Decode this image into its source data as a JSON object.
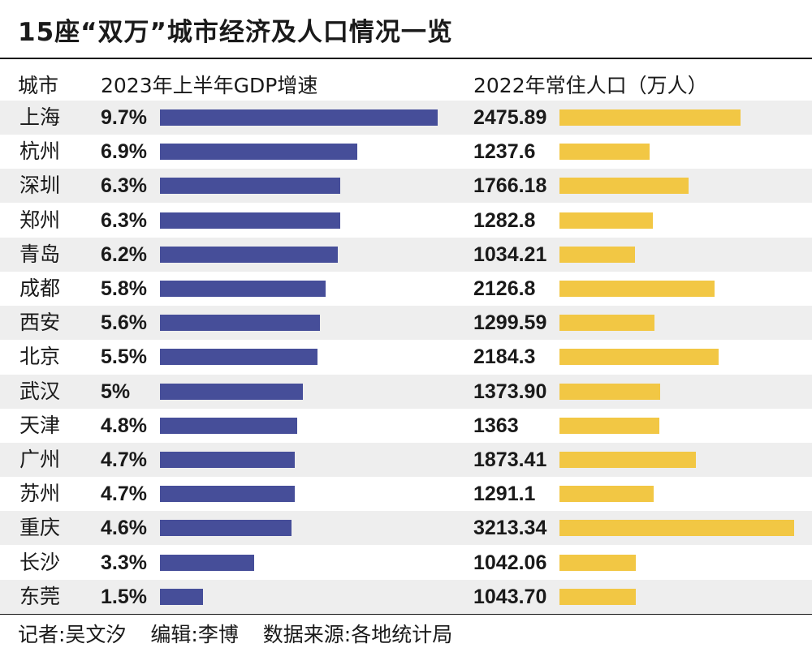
{
  "title": "15座“双万”城市经济及人口情况一览",
  "headers": {
    "city": "城市",
    "gdp": "2023年上半年GDP增速",
    "population": "2022年常住人口（万人）"
  },
  "colors": {
    "gdp_bar": "#464e99",
    "pop_bar": "#f2c744",
    "row_alt": "#eeeeee"
  },
  "chart_data": {
    "type": "bar",
    "categories": [
      "上海",
      "杭州",
      "深圳",
      "郑州",
      "青岛",
      "成都",
      "西安",
      "北京",
      "武汉",
      "天津",
      "广州",
      "苏州",
      "重庆",
      "长沙",
      "东莞"
    ],
    "series": [
      {
        "name": "2023年上半年GDP增速",
        "unit": "%",
        "values": [
          9.7,
          6.9,
          6.3,
          6.3,
          6.2,
          5.8,
          5.6,
          5.5,
          5,
          4.8,
          4.7,
          4.7,
          4.6,
          3.3,
          1.5
        ],
        "labels": [
          "9.7%",
          "6.9%",
          "6.3%",
          "6.3%",
          "6.2%",
          "5.8%",
          "5.6%",
          "5.5%",
          "5%",
          "4.8%",
          "4.7%",
          "4.7%",
          "4.6%",
          "3.3%",
          "1.5%"
        ]
      },
      {
        "name": "2022年常住人口（万人）",
        "unit": "万人",
        "values": [
          2475.89,
          1237.6,
          1766.18,
          1282.8,
          1034.21,
          2126.8,
          1299.59,
          2184.3,
          1373.9,
          1363,
          1873.41,
          1291.1,
          3213.34,
          1042.06,
          1043.7
        ],
        "labels": [
          "2475.89",
          "1237.6",
          "1766.18",
          "1282.8",
          "1034.21",
          "2126.8",
          "1299.59",
          "2184.3",
          "1373.90",
          "1363",
          "1873.41",
          "1291.1",
          "3213.34",
          "1042.06",
          "1043.70"
        ]
      }
    ]
  },
  "footer": {
    "reporter": "记者:吴文汐",
    "editor": "编辑:李博",
    "source": "数据来源:各地统计局"
  }
}
